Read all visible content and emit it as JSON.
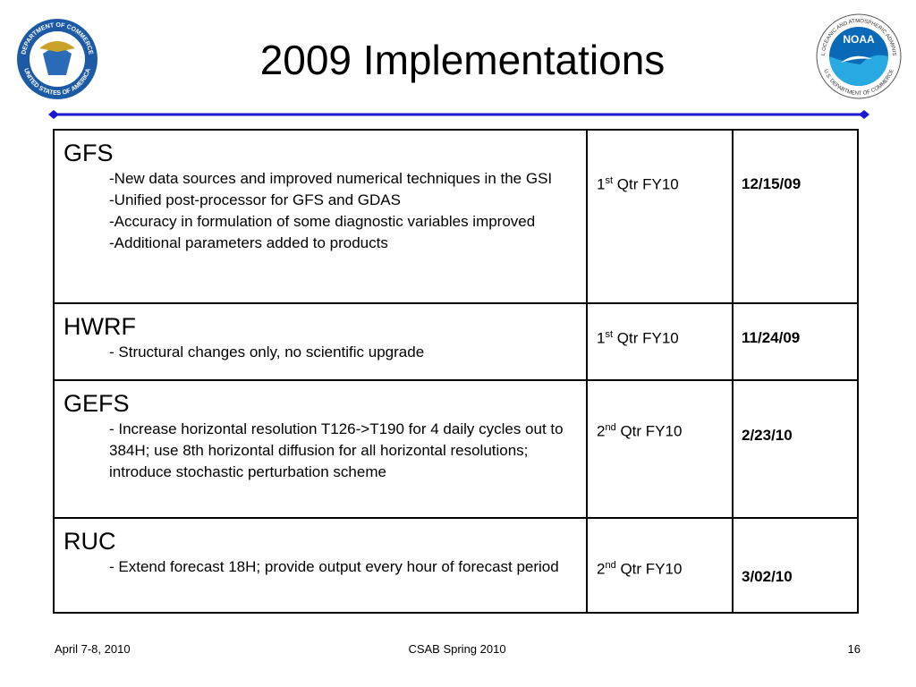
{
  "header": {
    "title": "2009 Implementations",
    "left_logo": {
      "top": "DEPARTMENT OF COMMERCE",
      "bottom": "UNITED STATES OF AMERICA"
    },
    "right_logo": {
      "top": "NATIONAL OCEANIC AND ATMOSPHERIC ADMINISTRATION",
      "bottom": "U.S. DEPARTMENT OF COMMERCE",
      "center": "NOAA"
    }
  },
  "table": {
    "rows": [
      {
        "name": "GFS",
        "items": [
          "-New data sources and improved numerical techniques in the GSI",
          "-Unified post-processor for GFS and GDAS",
          "-Accuracy in formulation of some diagnostic variables improved",
          "-Additional parameters added to products"
        ],
        "quarter": {
          "ordinal": "1",
          "suffix": "st",
          "text": "Qtr FY10"
        },
        "date": "12/15/09"
      },
      {
        "name": "HWRF",
        "items": [
          "- Structural changes only, no scientific upgrade"
        ],
        "quarter": {
          "ordinal": "1",
          "suffix": "st",
          "text": "Qtr FY10"
        },
        "date": "11/24/09"
      },
      {
        "name": "GEFS",
        "items": [
          "- Increase horizontal resolution T126->T190 for 4 daily cycles out to 384H; use 8th horizontal diffusion for all horizontal resolutions; introduce stochastic perturbation scheme"
        ],
        "quarter": {
          "ordinal": "2",
          "suffix": "nd",
          "text": "Qtr FY10"
        },
        "date": "2/23/10"
      },
      {
        "name": "RUC",
        "items": [
          "- Extend forecast 18H; provide output every hour of forecast period"
        ],
        "quarter": {
          "ordinal": "2",
          "suffix": "nd",
          "text": "Qtr FY10"
        },
        "date": "3/02/10"
      }
    ]
  },
  "footer": {
    "date": "April 7-8, 2010",
    "event": "CSAB Spring 2010",
    "page": "16"
  }
}
